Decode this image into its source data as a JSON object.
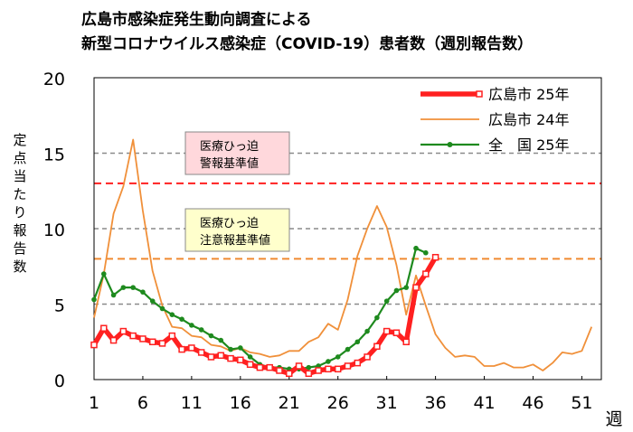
{
  "chart_data": {
    "type": "line",
    "title_line1": "広島市感染症発生動向調査による",
    "title_line2": "新型コロナウイルス感染症（COVID-19）患者数（週別報告数）",
    "ylabel": "定点当たり報告数",
    "xlabel": "週",
    "ylim": [
      0,
      20
    ],
    "yticks": [
      0,
      5,
      10,
      15,
      20
    ],
    "xlim": [
      1,
      53
    ],
    "xticks": [
      1,
      6,
      11,
      16,
      21,
      26,
      31,
      36,
      41,
      46,
      51
    ],
    "grid": "horizontal dashed",
    "legend_position": "top-right",
    "thresholds": [
      {
        "label_line1": "医療ひっ迫",
        "label_line2": "警報基準値",
        "value": 13,
        "color": "#ff2020",
        "box_fill": "#ffd8dc"
      },
      {
        "label_line1": "医療ひっ迫",
        "label_line2": "注意報基準値",
        "value": 8,
        "color": "#f08a30",
        "box_fill": "#ffffcc"
      }
    ],
    "series": [
      {
        "name": "広島市 24年",
        "color": "#f0903a",
        "x": [
          1,
          2,
          3,
          4,
          5,
          6,
          7,
          8,
          9,
          10,
          11,
          12,
          13,
          14,
          15,
          16,
          17,
          18,
          19,
          20,
          21,
          22,
          23,
          24,
          25,
          26,
          27,
          28,
          29,
          30,
          31,
          32,
          33,
          34,
          35,
          36,
          37,
          38,
          39,
          40,
          41,
          42,
          43,
          44,
          45,
          46,
          47,
          48,
          49,
          50,
          51,
          52
        ],
        "values": [
          4.1,
          7.0,
          11.0,
          12.8,
          15.9,
          11.2,
          7.2,
          4.9,
          3.5,
          3.4,
          2.9,
          2.8,
          2.3,
          2.2,
          1.9,
          2.1,
          1.8,
          1.7,
          1.5,
          1.6,
          1.9,
          1.9,
          2.5,
          2.8,
          3.7,
          3.3,
          5.3,
          8.2,
          10.0,
          11.5,
          10.1,
          7.6,
          4.3,
          6.9,
          4.9,
          3.0,
          2.1,
          1.5,
          1.6,
          1.5,
          0.9,
          0.9,
          1.1,
          0.8,
          0.8,
          1.0,
          0.6,
          1.1,
          1.8,
          1.7,
          1.9,
          3.5
        ]
      },
      {
        "name": "全　国 25年",
        "color": "#1e8a1e",
        "x": [
          1,
          2,
          3,
          4,
          5,
          6,
          7,
          8,
          9,
          10,
          11,
          12,
          13,
          14,
          15,
          16,
          17,
          18,
          19,
          20,
          21,
          22,
          23,
          24,
          25,
          26,
          27,
          28,
          29,
          30,
          31,
          32,
          33,
          34,
          35
        ],
        "values": [
          5.3,
          7.0,
          5.6,
          6.1,
          6.1,
          5.8,
          5.2,
          4.7,
          4.3,
          4.0,
          3.6,
          3.3,
          2.9,
          2.6,
          2.0,
          2.1,
          1.5,
          1.0,
          0.8,
          0.8,
          0.7,
          0.7,
          0.8,
          0.9,
          1.2,
          1.5,
          2.0,
          2.5,
          3.2,
          4.1,
          5.2,
          5.9,
          6.1,
          8.7,
          8.4
        ]
      },
      {
        "name": "広島市 25年",
        "color": "#ff2020",
        "x": [
          1,
          2,
          3,
          4,
          5,
          6,
          7,
          8,
          9,
          10,
          11,
          12,
          13,
          14,
          15,
          16,
          17,
          18,
          19,
          20,
          21,
          22,
          23,
          24,
          25,
          26,
          27,
          28,
          29,
          30,
          31,
          32,
          33,
          34,
          35,
          36
        ],
        "values": [
          2.3,
          3.4,
          2.6,
          3.2,
          2.9,
          2.7,
          2.5,
          2.4,
          2.9,
          2.0,
          2.1,
          1.8,
          1.5,
          1.6,
          1.4,
          1.3,
          1.0,
          0.8,
          0.8,
          0.6,
          0.4,
          0.9,
          0.4,
          0.6,
          0.7,
          0.7,
          0.9,
          1.1,
          1.5,
          2.2,
          3.2,
          3.1,
          2.5,
          6.1,
          7.0,
          8.1
        ]
      }
    ]
  }
}
